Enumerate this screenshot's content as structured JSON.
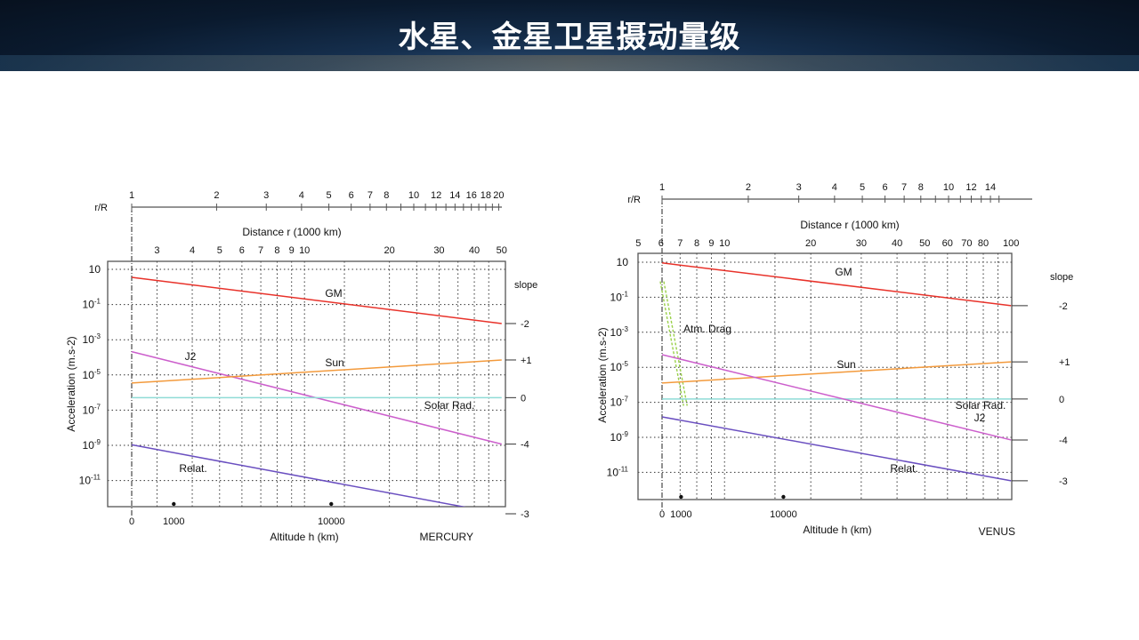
{
  "header": {
    "title": "水星、金星卫星摄动量级"
  },
  "chart_data": [
    {
      "type": "line",
      "title": "MERCURY",
      "body_radius_1000km": 2.44,
      "xlabel": "Altitude h (km)",
      "x2label": "Distance r (1000 km)",
      "x3label": "r/R",
      "ylabel": "Acceleration (m.s-2)",
      "yscale": "log",
      "ylim_log10": [
        -12.5,
        1.5
      ],
      "y_tick_exponents": [
        1,
        -1,
        -3,
        -5,
        -7,
        -9,
        -11
      ],
      "distance_ticks": [
        3,
        4,
        5,
        6,
        7,
        8,
        9,
        10,
        20,
        30,
        40,
        50
      ],
      "rR_ticks": [
        1,
        2,
        3,
        4,
        5,
        6,
        7,
        8,
        10,
        12,
        14,
        16,
        18,
        20
      ],
      "rR_minor": [
        9,
        11,
        13,
        15,
        17,
        19
      ],
      "altitude_ticks": [
        0,
        1000,
        10000
      ],
      "slope_header": "slope",
      "series": [
        {
          "name": "GM",
          "color": "#e8322a",
          "slope": "-2",
          "points": [
            [
              2.44,
              0.545
            ],
            [
              50,
              -2.08
            ]
          ]
        },
        {
          "name": "J2",
          "color": "#cc5fcc",
          "slope": "-4",
          "points": [
            [
              2.44,
              -3.68
            ],
            [
              50,
              -8.93
            ]
          ]
        },
        {
          "name": "Sun",
          "color": "#f39a3c",
          "slope": "+1",
          "points": [
            [
              2.44,
              -5.46
            ],
            [
              50,
              -4.15
            ]
          ]
        },
        {
          "name": "Solar Rad.",
          "color": "#8fdbd6",
          "slope": "0",
          "points": [
            [
              2.44,
              -6.29
            ],
            [
              50,
              -6.29
            ]
          ]
        },
        {
          "name": "Relat.",
          "color": "#6a4fc0",
          "slope": "-3",
          "points": [
            [
              2.44,
              -8.97
            ],
            [
              50,
              -12.9
            ]
          ]
        }
      ]
    },
    {
      "type": "line",
      "title": "VENUS",
      "body_radius_1000km": 6.052,
      "xlabel": "Altitude h (km)",
      "x2label": "Distance r (1000 km)",
      "x3label": "r/R",
      "ylabel": "Acceleration (m.s-2)",
      "yscale": "log",
      "ylim_log10": [
        -12.5,
        1.5
      ],
      "y_tick_exponents": [
        1,
        -1,
        -3,
        -5,
        -7,
        -9,
        -11
      ],
      "distance_ticks": [
        5,
        6,
        7,
        8,
        9,
        10,
        20,
        30,
        40,
        50,
        60,
        70,
        80,
        100
      ],
      "rR_ticks": [
        1,
        2,
        3,
        4,
        5,
        6,
        7,
        8,
        10,
        12,
        14
      ],
      "rR_minor": [
        9,
        11,
        13,
        15
      ],
      "altitude_ticks": [
        0,
        1000,
        10000
      ],
      "slope_header": "slope",
      "series": [
        {
          "name": "GM",
          "color": "#e8322a",
          "slope": "-2",
          "points": [
            [
              6.052,
              0.96
            ],
            [
              100,
              -1.48
            ]
          ]
        },
        {
          "name": "Atm.  Drag",
          "color": "#9ad04a",
          "slope": "",
          "points": [
            [
              6.052,
              -0.1
            ],
            [
              7.3,
              -7.2
            ]
          ]
        },
        {
          "name": "Sun",
          "color": "#f39a3c",
          "slope": "+1",
          "points": [
            [
              6.052,
              -5.9
            ],
            [
              100,
              -4.69
            ]
          ]
        },
        {
          "name": "Solar Rad.",
          "color": "#8fdbd6",
          "slope": "0",
          "points": [
            [
              6.052,
              -6.81
            ],
            [
              100,
              -6.81
            ]
          ]
        },
        {
          "name": "J2",
          "color": "#cc5fcc",
          "slope": "-4",
          "points": [
            [
              6.052,
              -4.28
            ],
            [
              100,
              -9.15
            ]
          ]
        },
        {
          "name": "Relat.",
          "color": "#6a4fc0",
          "slope": "-3",
          "points": [
            [
              6.052,
              -7.83
            ],
            [
              100,
              -11.48
            ]
          ]
        }
      ]
    }
  ]
}
